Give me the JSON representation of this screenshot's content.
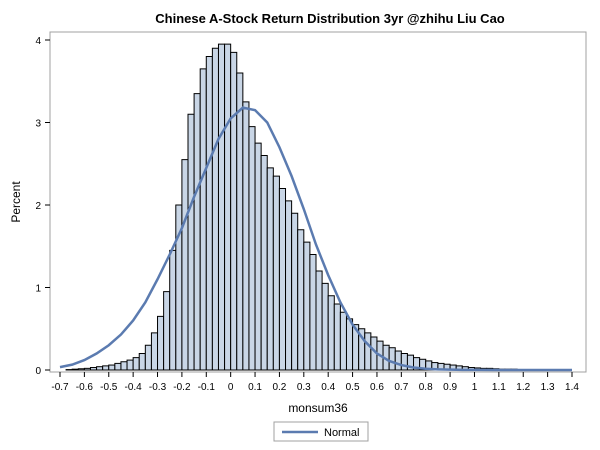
{
  "chart_data": {
    "type": "bar",
    "title": "Chinese A-Stock Return Distribution 3yr @zhihu Liu Cao",
    "xlabel": "monsum36",
    "ylabel": "Percent",
    "xlim": [
      -0.7,
      1.4
    ],
    "ylim": [
      0,
      4
    ],
    "x_ticks": [
      "-0.7",
      "-0.6",
      "-0.5",
      "-0.4",
      "-0.3",
      "-0.2",
      "-0.1",
      "0",
      "0.1",
      "0.2",
      "0.3",
      "0.4",
      "0.5",
      "0.6",
      "0.7",
      "0.8",
      "0.9",
      "1",
      "1.1",
      "1.2",
      "1.3",
      "1.4"
    ],
    "y_ticks": [
      "0",
      "1",
      "2",
      "3",
      "4"
    ],
    "bin_width": 0.025,
    "histogram": {
      "bin_centers": [
        -0.6625,
        -0.6375,
        -0.6125,
        -0.5875,
        -0.5625,
        -0.5375,
        -0.5125,
        -0.4875,
        -0.4625,
        -0.4375,
        -0.4125,
        -0.3875,
        -0.3625,
        -0.3375,
        -0.3125,
        -0.2875,
        -0.2625,
        -0.2375,
        -0.2125,
        -0.1875,
        -0.1625,
        -0.1375,
        -0.1125,
        -0.0875,
        -0.0625,
        -0.0375,
        -0.0125,
        0.0125,
        0.0375,
        0.0625,
        0.0875,
        0.1125,
        0.1375,
        0.1625,
        0.1875,
        0.2125,
        0.2375,
        0.2625,
        0.2875,
        0.3125,
        0.3375,
        0.3625,
        0.3875,
        0.4125,
        0.4375,
        0.4625,
        0.4875,
        0.5125,
        0.5375,
        0.5625,
        0.5875,
        0.6125,
        0.6375,
        0.6625,
        0.6875,
        0.7125,
        0.7375,
        0.7625,
        0.7875,
        0.8125,
        0.8375,
        0.8625,
        0.8875,
        0.9125,
        0.9375,
        0.9625,
        0.9875,
        1.0125,
        1.0375,
        1.0625,
        1.0875,
        1.1125,
        1.1375,
        1.1625,
        1.1875
      ],
      "values": [
        0.005,
        0.01,
        0.015,
        0.02,
        0.03,
        0.04,
        0.05,
        0.06,
        0.08,
        0.1,
        0.12,
        0.15,
        0.2,
        0.3,
        0.45,
        0.65,
        0.95,
        1.45,
        2.0,
        2.55,
        3.1,
        3.35,
        3.65,
        3.8,
        3.9,
        3.95,
        3.95,
        3.85,
        3.6,
        3.25,
        2.95,
        2.75,
        2.6,
        2.45,
        2.35,
        2.2,
        2.05,
        1.9,
        1.7,
        1.55,
        1.4,
        1.2,
        1.05,
        0.9,
        0.8,
        0.7,
        0.62,
        0.55,
        0.5,
        0.45,
        0.4,
        0.35,
        0.3,
        0.27,
        0.23,
        0.2,
        0.18,
        0.15,
        0.13,
        0.11,
        0.09,
        0.08,
        0.07,
        0.06,
        0.05,
        0.04,
        0.03,
        0.025,
        0.02,
        0.02,
        0.015,
        0.01,
        0.01,
        0.01,
        0.005
      ]
    },
    "series": [
      {
        "name": "Normal",
        "color": "#5b7bb0",
        "x": [
          -0.7,
          -0.65,
          -0.6,
          -0.55,
          -0.5,
          -0.45,
          -0.4,
          -0.35,
          -0.3,
          -0.25,
          -0.2,
          -0.15,
          -0.1,
          -0.05,
          0,
          0.05,
          0.1,
          0.15,
          0.2,
          0.25,
          0.3,
          0.35,
          0.4,
          0.45,
          0.5,
          0.55,
          0.6,
          0.65,
          0.7,
          0.75,
          0.8,
          0.85,
          0.9,
          0.95,
          1.0,
          1.1,
          1.2,
          1.3,
          1.4
        ],
        "y": [
          0.035,
          0.065,
          0.12,
          0.2,
          0.3,
          0.43,
          0.6,
          0.82,
          1.1,
          1.4,
          1.72,
          2.1,
          2.45,
          2.8,
          3.05,
          3.18,
          3.15,
          3.0,
          2.7,
          2.35,
          1.95,
          1.52,
          1.15,
          0.82,
          0.55,
          0.35,
          0.2,
          0.11,
          0.06,
          0.03,
          0.015,
          0.008,
          0.004,
          0.002,
          0.001,
          0,
          0,
          0,
          0
        ]
      }
    ],
    "bar_fill": "#c9d6e6",
    "bar_stroke": "#000000",
    "legend": {
      "position": "bottom-center",
      "entries": [
        "Normal"
      ]
    },
    "grid": false
  }
}
